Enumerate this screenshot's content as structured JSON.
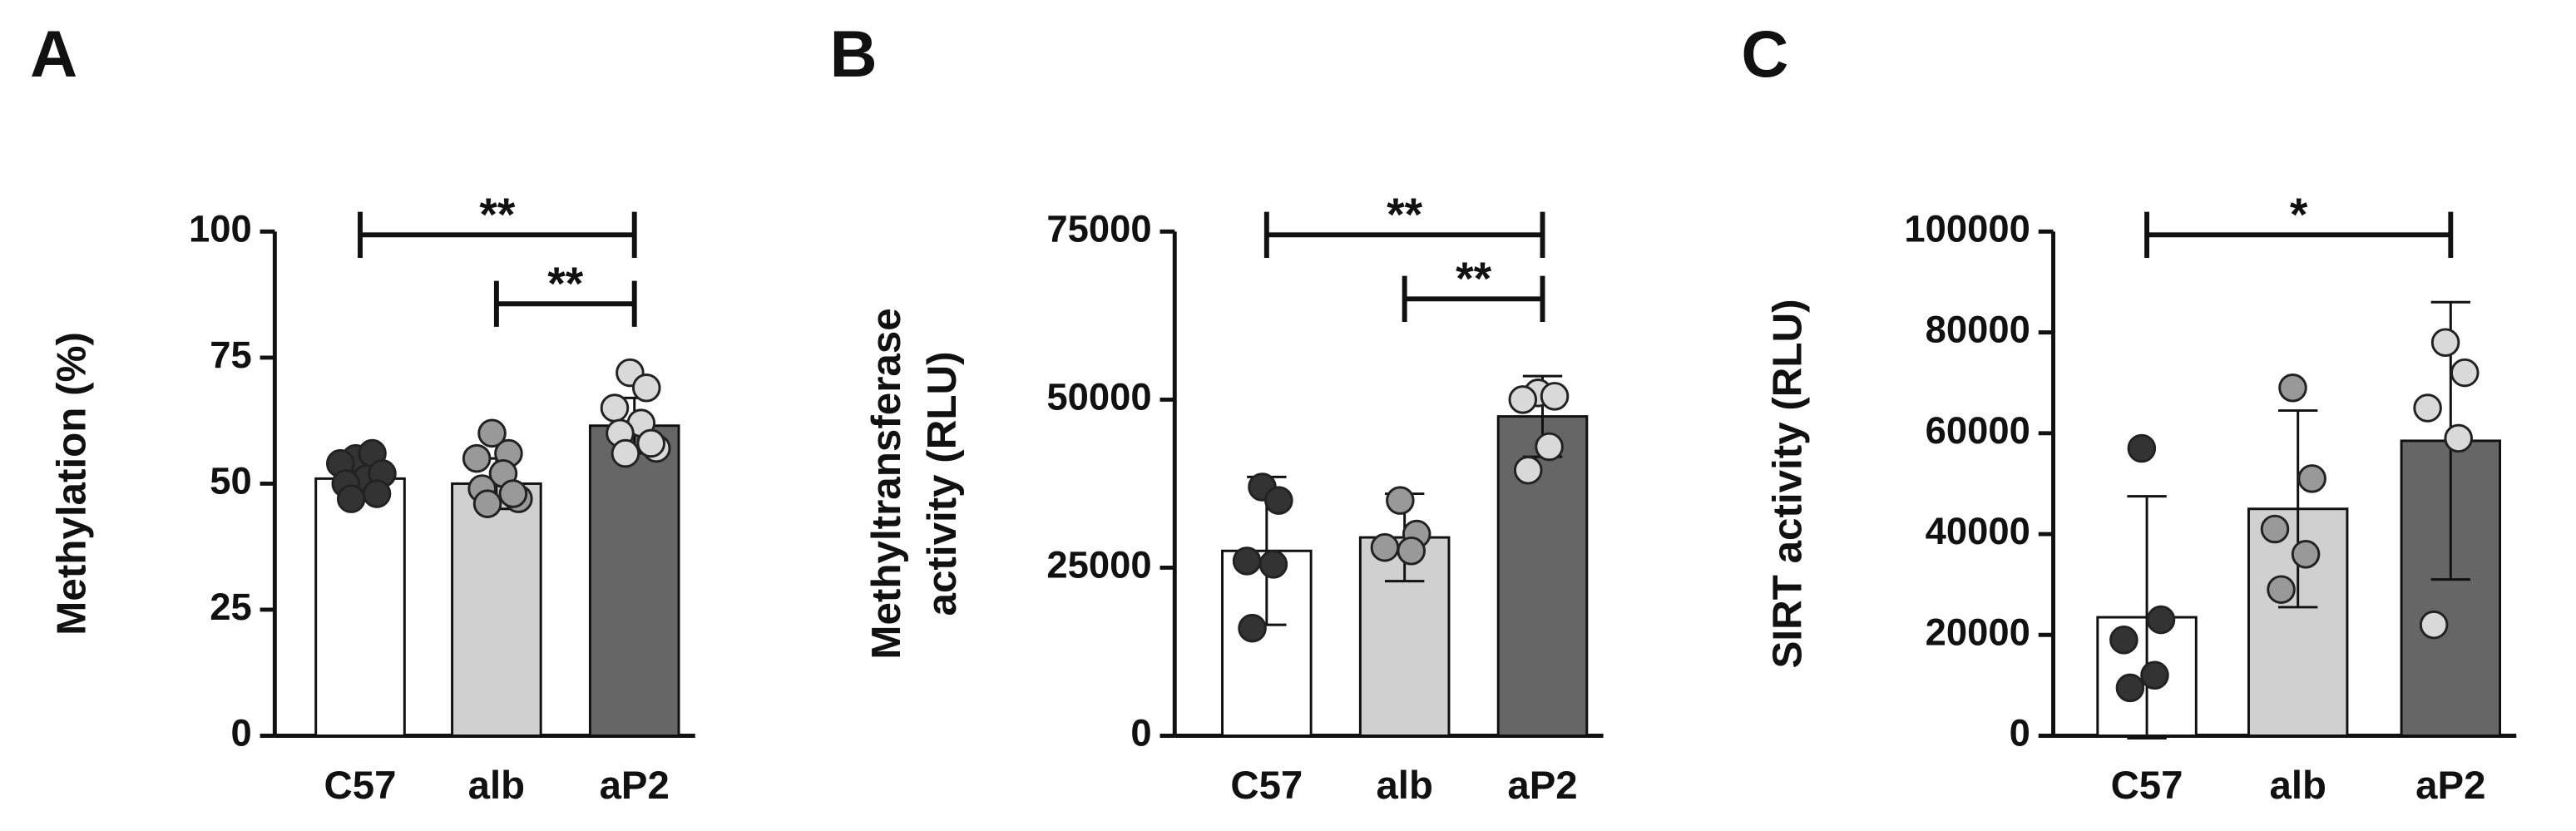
{
  "chart_data": [
    {
      "type": "bar",
      "panel": "A",
      "ylabel": [
        "Methylation (%)"
      ],
      "categories": [
        "C57",
        "alb",
        "aP2"
      ],
      "values": [
        51,
        50,
        61.5
      ],
      "errors": [
        3.5,
        5,
        5.5
      ],
      "colors": [
        "#ffffff",
        "#d0d0d0",
        "#666666"
      ],
      "points": [
        [
          55,
          56,
          54,
          51,
          50,
          52,
          47,
          48
        ],
        [
          60,
          56,
          55,
          52,
          49,
          47,
          46,
          48
        ],
        [
          72,
          69,
          65,
          62,
          60,
          57,
          56,
          58
        ]
      ],
      "point_colors": [
        "#333333",
        "#999999",
        "#d9d9d9"
      ],
      "ylim": [
        0,
        100
      ],
      "yticks": [
        0,
        25,
        50,
        75,
        100
      ],
      "annotations": [
        {
          "text": "**",
          "from": 0,
          "to": 2
        },
        {
          "text": "**",
          "from": 1,
          "to": 2
        }
      ]
    },
    {
      "type": "bar",
      "panel": "B",
      "ylabel": [
        "Methyltransferase",
        "activity (RLU)"
      ],
      "categories": [
        "C57",
        "alb",
        "aP2"
      ],
      "values": [
        27500,
        29500,
        47500
      ],
      "errors": [
        11000,
        6500,
        6000
      ],
      "colors": [
        "#ffffff",
        "#d0d0d0",
        "#666666"
      ],
      "points": [
        [
          37000,
          35000,
          26000,
          25500,
          16000
        ],
        [
          35000,
          30000,
          28000,
          27500
        ],
        [
          51000,
          50500,
          50000,
          43000,
          39500
        ]
      ],
      "point_colors": [
        "#333333",
        "#999999",
        "#d9d9d9"
      ],
      "ylim": [
        0,
        75000
      ],
      "yticks": [
        0,
        25000,
        50000,
        75000
      ],
      "annotations": [
        {
          "text": "**",
          "from": 0,
          "to": 2
        },
        {
          "text": "**",
          "from": 1,
          "to": 2
        }
      ]
    },
    {
      "type": "bar",
      "panel": "C",
      "ylabel": [
        "SIRT activity (RLU)"
      ],
      "categories": [
        "C57",
        "alb",
        "aP2"
      ],
      "values": [
        23500,
        45000,
        58500
      ],
      "errors": [
        24000,
        19500,
        27500
      ],
      "colors": [
        "#ffffff",
        "#d0d0d0",
        "#666666"
      ],
      "points": [
        [
          57000,
          23000,
          19000,
          12000,
          9500
        ],
        [
          69000,
          51000,
          41000,
          36000,
          29000
        ],
        [
          78000,
          72000,
          65000,
          59000,
          22000
        ]
      ],
      "point_colors": [
        "#333333",
        "#999999",
        "#d9d9d9"
      ],
      "ylim": [
        0,
        100000
      ],
      "yticks": [
        0,
        20000,
        40000,
        60000,
        80000,
        100000
      ],
      "annotations": [
        {
          "text": "*",
          "from": 0,
          "to": 2
        }
      ]
    }
  ]
}
